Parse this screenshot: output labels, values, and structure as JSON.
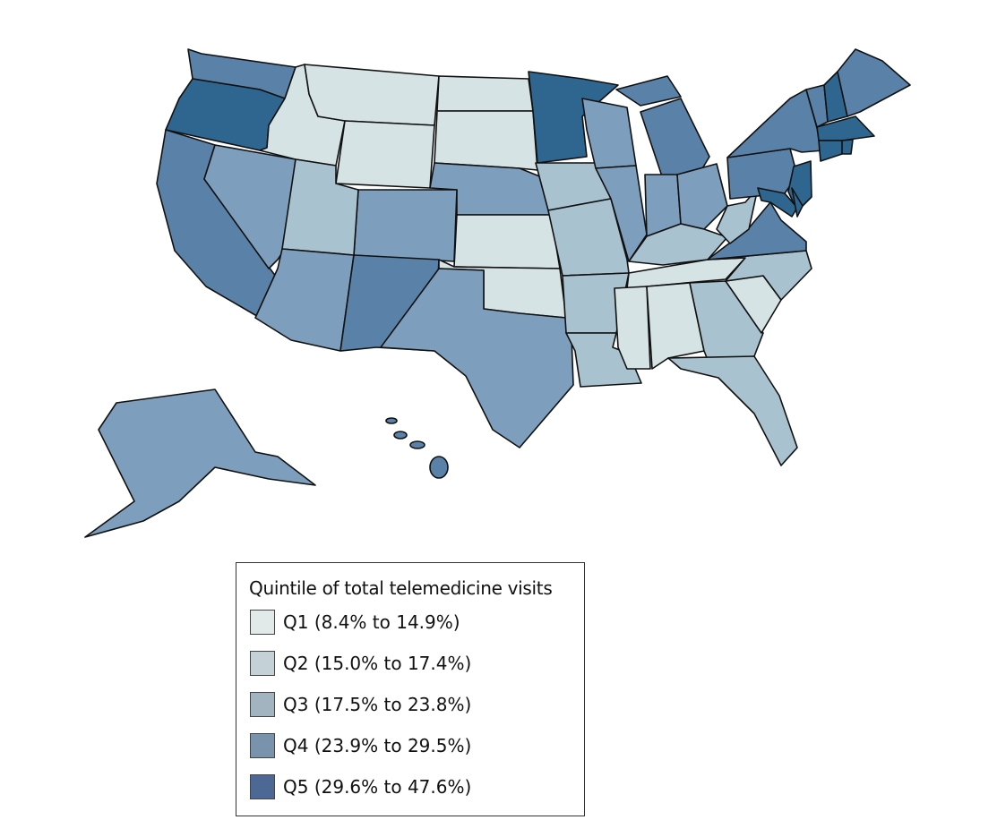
{
  "legend": {
    "title": "Quintile of total telemedicine visits",
    "items": [
      {
        "label": "Q1 (8.4% to 14.9%)",
        "swatch": "#e1e9e9",
        "map_color": "#d5e3e5"
      },
      {
        "label": "Q2 (15.0% to 17.4%)",
        "swatch": "#c4d1d6",
        "map_color": "#a9c2d0"
      },
      {
        "label": "Q3 (17.5% to 23.8%)",
        "swatch": "#a2b4c0",
        "map_color": "#7d9fbd"
      },
      {
        "label": "Q4 (23.9% to 29.5%)",
        "swatch": "#7a93ac",
        "map_color": "#5a82a8"
      },
      {
        "label": "Q5 (29.6% to 47.6%)",
        "swatch": "#4d6895",
        "map_color": "#2f6690"
      }
    ]
  },
  "states": {
    "WA": 4,
    "OR": 5,
    "CA": 4,
    "NV": 3,
    "ID": 1,
    "MT": 1,
    "WY": 1,
    "ND": 1,
    "SD": 1,
    "NE": 3,
    "CO": 3,
    "UT": 2,
    "AZ": 3,
    "NM": 4,
    "KS": 1,
    "OK": 1,
    "TX": 3,
    "MN": 5,
    "IA": 2,
    "MO": 2,
    "AR": 2,
    "LA": 2,
    "WI": 3,
    "IL": 3,
    "MI": 4,
    "IN": 3,
    "OH": 3,
    "KY": 2,
    "TN": 1,
    "MS": 1,
    "AL": 1,
    "GA": 2,
    "FL": 2,
    "SC": 1,
    "NC": 2,
    "VA": 4,
    "WV": 2,
    "PA": 4,
    "NY": 4,
    "NJ": 5,
    "MD": 5,
    "DE": 5,
    "VT": 4,
    "NH": 5,
    "ME": 4,
    "MA": 5,
    "CT": 5,
    "RI": 5,
    "AK": 3,
    "HI": 4
  }
}
